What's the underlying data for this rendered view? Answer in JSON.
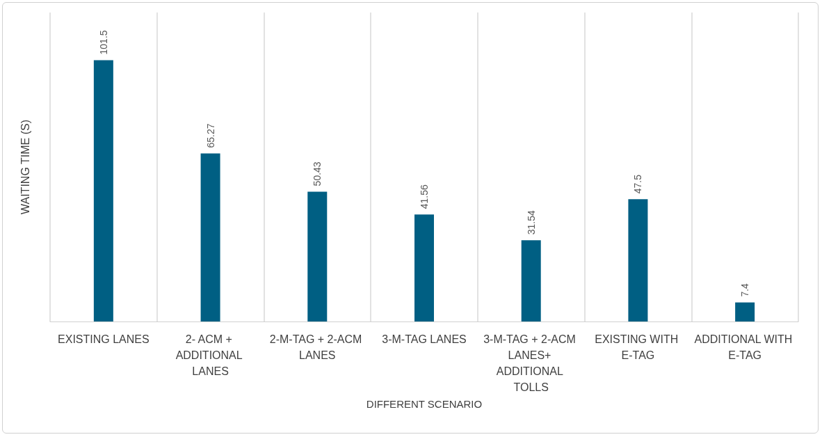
{
  "chart_data": {
    "type": "bar",
    "xlabel": "DIFFERENT SCENARIO",
    "ylabel": "WAITING TIME (S)",
    "categories": [
      "EXISTING LANES",
      "2- ACM + ADDITIONAL LANES",
      "2-M-TAG + 2-ACM LANES",
      "3-M-TAG LANES",
      "3-M-TAG + 2-ACM LANES+ ADDITIONAL TOLLS",
      "EXISTING WITH E-TAG",
      "ADDITIONAL WITH E-TAG"
    ],
    "values": [
      101.5,
      65.27,
      50.43,
      41.56,
      31.54,
      47.5,
      7.4
    ],
    "color": "#005f83",
    "data_labels": true,
    "grid": "x"
  }
}
